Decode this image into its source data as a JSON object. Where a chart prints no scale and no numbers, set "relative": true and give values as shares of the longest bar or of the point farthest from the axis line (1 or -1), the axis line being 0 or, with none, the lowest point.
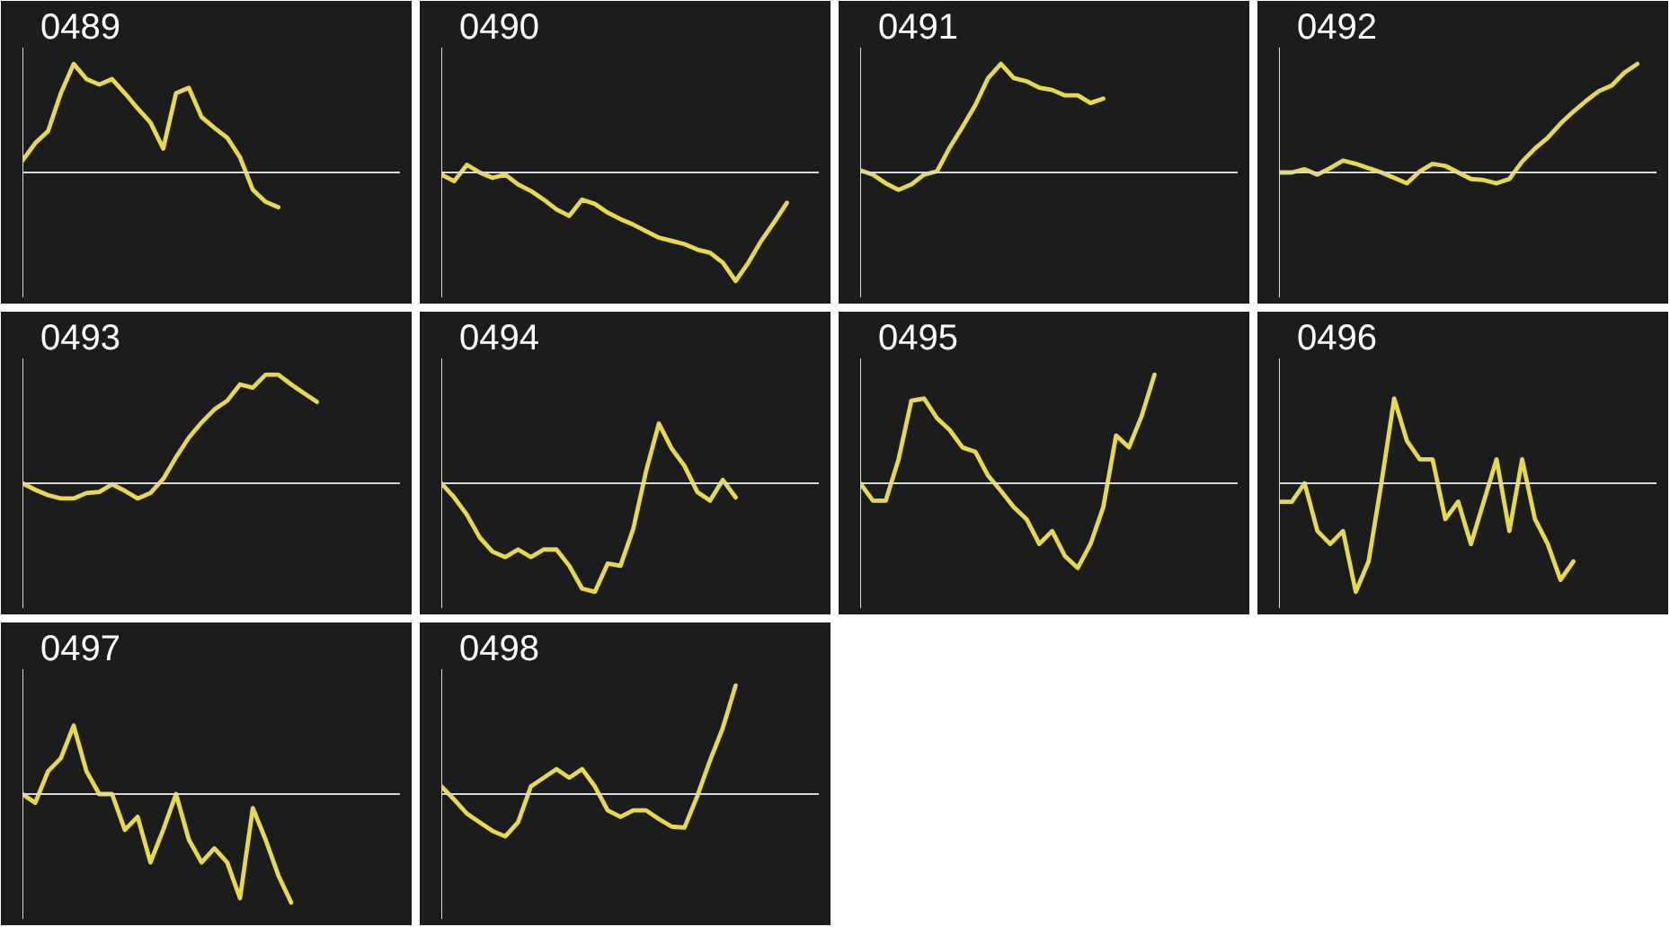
{
  "chart_data": [
    {
      "type": "line",
      "title": "0489",
      "relative": true,
      "categories": [
        null,
        null,
        null,
        null,
        null,
        null,
        null,
        null,
        null,
        null,
        null,
        null,
        null,
        null,
        null,
        null,
        null,
        null,
        null,
        null,
        null,
        null,
        null,
        null,
        null,
        null,
        null,
        null,
        null,
        null
      ],
      "series": [
        {
          "color": "#e8d84c",
          "values": [
            0.11,
            0.27,
            0.38,
            0.73,
            1,
            0.86,
            0.81,
            0.86,
            0.73,
            0.59,
            0.46,
            0.22,
            0.73,
            0.78,
            0.51,
            0.41,
            0.32,
            0.14,
            -0.16,
            -0.27,
            -0.32,
            null,
            null,
            null,
            null,
            null,
            null,
            null,
            null,
            null
          ]
        }
      ]
    },
    {
      "type": "line",
      "title": "0490",
      "relative": true,
      "categories": [
        null,
        null,
        null,
        null,
        null,
        null,
        null,
        null,
        null,
        null,
        null,
        null,
        null,
        null,
        null,
        null,
        null,
        null,
        null,
        null,
        null,
        null,
        null,
        null,
        null,
        null,
        null,
        null,
        null,
        null
      ],
      "series": [
        {
          "color": "#e8d84c",
          "values": [
            -0.02,
            -0.08,
            0.07,
            0,
            -0.05,
            -0.02,
            -0.11,
            -0.17,
            -0.25,
            -0.34,
            -0.4,
            -0.25,
            -0.29,
            -0.37,
            -0.43,
            -0.48,
            -0.54,
            -0.6,
            -0.63,
            -0.66,
            -0.71,
            -0.74,
            -0.83,
            -1,
            -0.83,
            -0.63,
            -0.46,
            -0.28,
            null,
            null
          ]
        }
      ]
    },
    {
      "type": "line",
      "title": "0491",
      "relative": true,
      "categories": [
        null,
        null,
        null,
        null,
        null,
        null,
        null,
        null,
        null,
        null,
        null,
        null,
        null,
        null,
        null,
        null,
        null,
        null,
        null,
        null,
        null,
        null,
        null,
        null,
        null,
        null,
        null,
        null,
        null,
        null
      ],
      "series": [
        {
          "color": "#e8d84c",
          "values": [
            0.02,
            -0.02,
            -0.1,
            -0.16,
            -0.11,
            -0.02,
            0.01,
            0.23,
            0.42,
            0.62,
            0.87,
            1,
            0.87,
            0.84,
            0.78,
            0.76,
            0.71,
            0.71,
            0.64,
            0.68,
            null,
            null,
            null,
            null,
            null,
            null,
            null,
            null,
            null,
            null
          ]
        }
      ]
    },
    {
      "type": "line",
      "title": "0492",
      "relative": true,
      "categories": [
        null,
        null,
        null,
        null,
        null,
        null,
        null,
        null,
        null,
        null,
        null,
        null,
        null,
        null,
        null,
        null,
        null,
        null,
        null,
        null,
        null,
        null,
        null,
        null,
        null,
        null,
        null,
        null,
        null,
        null
      ],
      "series": [
        {
          "color": "#e8d84c",
          "values": [
            0,
            0,
            0.03,
            -0.02,
            0.04,
            0.11,
            0.08,
            0.04,
            0,
            -0.05,
            -0.1,
            0.01,
            0.08,
            0.06,
            0,
            -0.06,
            -0.07,
            -0.1,
            -0.06,
            0.1,
            0.22,
            0.32,
            0.45,
            0.56,
            0.66,
            0.75,
            0.8,
            0.92,
            1,
            null
          ]
        }
      ]
    },
    {
      "type": "line",
      "title": "0493",
      "relative": true,
      "categories": [
        null,
        null,
        null,
        null,
        null,
        null,
        null,
        null,
        null,
        null,
        null,
        null,
        null,
        null,
        null,
        null,
        null,
        null,
        null,
        null,
        null,
        null,
        null,
        null,
        null,
        null,
        null,
        null,
        null,
        null
      ],
      "series": [
        {
          "color": "#e8d84c",
          "values": [
            0,
            -0.06,
            -0.11,
            -0.14,
            -0.14,
            -0.09,
            -0.08,
            -0.01,
            -0.07,
            -0.14,
            -0.09,
            0.04,
            0.24,
            0.42,
            0.56,
            0.68,
            0.76,
            0.91,
            0.88,
            1,
            1,
            0.91,
            0.83,
            0.75,
            null,
            null,
            null,
            null,
            null,
            null
          ]
        }
      ]
    },
    {
      "type": "line",
      "title": "0494",
      "relative": true,
      "categories": [
        null,
        null,
        null,
        null,
        null,
        null,
        null,
        null,
        null,
        null,
        null,
        null,
        null,
        null,
        null,
        null,
        null,
        null,
        null,
        null,
        null,
        null,
        null,
        null,
        null,
        null,
        null,
        null,
        null,
        null
      ],
      "series": [
        {
          "color": "#e8d84c",
          "values": [
            0,
            -0.13,
            -0.29,
            -0.5,
            -0.63,
            -0.68,
            -0.61,
            -0.68,
            -0.61,
            -0.61,
            -0.76,
            -0.97,
            -1,
            -0.74,
            -0.76,
            -0.42,
            0.11,
            0.55,
            0.32,
            0.16,
            -0.08,
            -0.16,
            0.03,
            -0.13,
            null,
            null,
            null,
            null,
            null,
            null
          ]
        }
      ]
    },
    {
      "type": "line",
      "title": "0495",
      "relative": true,
      "categories": [
        null,
        null,
        null,
        null,
        null,
        null,
        null,
        null,
        null,
        null,
        null,
        null,
        null,
        null,
        null,
        null,
        null,
        null,
        null,
        null,
        null,
        null,
        null,
        null,
        null,
        null,
        null,
        null,
        null,
        null
      ],
      "series": [
        {
          "color": "#e8d84c",
          "values": [
            0,
            -0.16,
            -0.16,
            0.22,
            0.76,
            0.78,
            0.6,
            0.49,
            0.33,
            0.29,
            0.07,
            -0.07,
            -0.22,
            -0.33,
            -0.56,
            -0.44,
            -0.67,
            -0.78,
            -0.56,
            -0.22,
            0.44,
            0.33,
            0.62,
            1,
            null,
            null,
            null,
            null,
            null,
            null
          ]
        }
      ]
    },
    {
      "type": "line",
      "title": "0496",
      "relative": true,
      "categories": [
        null,
        null,
        null,
        null,
        null,
        null,
        null,
        null,
        null,
        null,
        null,
        null,
        null,
        null,
        null,
        null,
        null,
        null,
        null,
        null,
        null,
        null,
        null,
        null,
        null,
        null,
        null,
        null,
        null,
        null
      ],
      "series": [
        {
          "color": "#e8d84c",
          "values": [
            -0.17,
            -0.17,
            0,
            -0.44,
            -0.56,
            -0.44,
            -1,
            -0.72,
            0,
            0.78,
            0.39,
            0.22,
            0.22,
            -0.33,
            -0.17,
            -0.56,
            -0.17,
            0.22,
            -0.44,
            0.22,
            -0.33,
            -0.56,
            -0.89,
            -0.72,
            null,
            null,
            null,
            null,
            null,
            null
          ]
        }
      ]
    },
    {
      "type": "line",
      "title": "0497",
      "relative": true,
      "categories": [
        null,
        null,
        null,
        null,
        null,
        null,
        null,
        null,
        null,
        null,
        null,
        null,
        null,
        null,
        null,
        null,
        null,
        null,
        null,
        null,
        null,
        null,
        null,
        null,
        null,
        null,
        null,
        null,
        null,
        null
      ],
      "series": [
        {
          "color": "#e8d84c",
          "values": [
            0,
            -0.08,
            0.21,
            0.33,
            0.63,
            0.21,
            0,
            0,
            -0.33,
            -0.21,
            -0.63,
            -0.33,
            0,
            -0.42,
            -0.63,
            -0.5,
            -0.63,
            -0.96,
            -0.13,
            -0.42,
            -0.75,
            -1,
            null,
            null,
            null,
            null,
            null,
            null,
            null,
            null
          ]
        }
      ]
    },
    {
      "type": "line",
      "title": "0498",
      "relative": true,
      "categories": [
        null,
        null,
        null,
        null,
        null,
        null,
        null,
        null,
        null,
        null,
        null,
        null,
        null,
        null,
        null,
        null,
        null,
        null,
        null,
        null,
        null,
        null,
        null,
        null,
        null,
        null,
        null,
        null,
        null,
        null
      ],
      "series": [
        {
          "color": "#e8d84c",
          "values": [
            0.07,
            -0.05,
            -0.18,
            -0.26,
            -0.34,
            -0.39,
            -0.26,
            0.07,
            0.15,
            0.23,
            0.15,
            0.23,
            0.07,
            -0.15,
            -0.21,
            -0.15,
            -0.15,
            -0.23,
            -0.3,
            -0.31,
            -0.02,
            0.31,
            0.61,
            1,
            null,
            null,
            null,
            null,
            null,
            null
          ]
        }
      ]
    }
  ]
}
